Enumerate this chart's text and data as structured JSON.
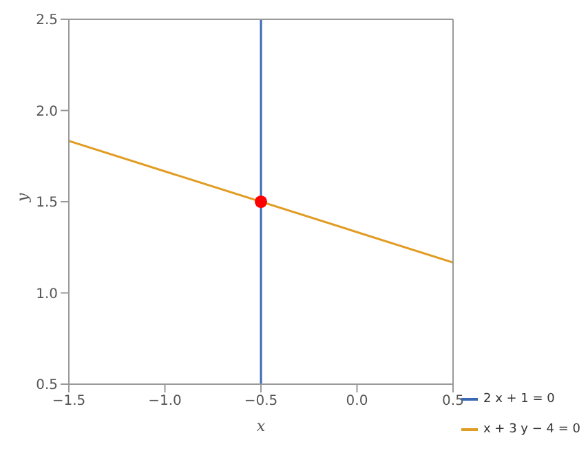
{
  "chart_data": {
    "type": "line",
    "xlabel": "x",
    "ylabel": "y",
    "xlim": [
      -1.5,
      0.5
    ],
    "ylim": [
      0.5,
      2.5
    ],
    "xticks": [
      {
        "value": -1.5,
        "label": "−1.5"
      },
      {
        "value": -1,
        "label": "−1.0"
      },
      {
        "value": -0.5,
        "label": "−0.5"
      },
      {
        "value": 0,
        "label": "0.0"
      },
      {
        "value": 0.5,
        "label": "0.5"
      }
    ],
    "yticks": [
      {
        "value": 0.5,
        "label": "0.5"
      },
      {
        "value": 1,
        "label": "1.0"
      },
      {
        "value": 1.5,
        "label": "1.5"
      },
      {
        "value": 2,
        "label": "2.0"
      },
      {
        "value": 2.5,
        "label": "2.5"
      }
    ],
    "series": [
      {
        "name": "2 x + 1 = 0",
        "color": "#3b68b5",
        "x": [
          -0.5,
          -0.5
        ],
        "values": [
          0.5,
          2.5
        ]
      },
      {
        "name": "x + 3 y − 4 = 0",
        "color": "#e19c24",
        "x": [
          -1.5,
          0.5
        ],
        "values": [
          1.833,
          1.167
        ]
      },
      {
        "type": "scatter",
        "marker": "circle",
        "color": "#ff0000",
        "x": [
          -0.5
        ],
        "values": [
          1.5
        ]
      }
    ],
    "marker": "none",
    "line_style": "solid",
    "legend": "bottom right"
  }
}
